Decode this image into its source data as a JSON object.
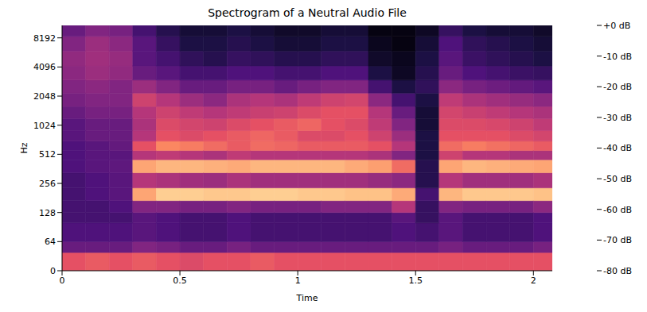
{
  "chart_data": {
    "type": "heatmap",
    "title": "Spectrogram of a Neutral Audio File",
    "x_label": "Time",
    "y_label": "Hz",
    "xlim": [
      0,
      2.08
    ],
    "xticks": [
      0,
      0.5,
      1,
      1.5,
      2
    ],
    "ylim": [
      0,
      11025
    ],
    "yticks": [
      0,
      64,
      128,
      256,
      512,
      1024,
      2048,
      4096,
      8192
    ],
    "log": "y",
    "x_edges": [
      0,
      0.1,
      0.2,
      0.3,
      0.4,
      0.5,
      0.6,
      0.7,
      0.8,
      0.9,
      1.0,
      1.1,
      1.2,
      1.3,
      1.4,
      1.5,
      1.6,
      1.7,
      1.8,
      1.9,
      2.0,
      2.08
    ],
    "y_edges": [
      0,
      40,
      64,
      100,
      128,
      170,
      230,
      330,
      450,
      560,
      700,
      900,
      1200,
      1600,
      2200,
      3000,
      4200,
      6000,
      8500,
      11025
    ],
    "cells": [
      [
        -30,
        -55,
        -60,
        -62,
        -62,
        -62,
        -62,
        -60,
        -60,
        -60,
        -58,
        -58,
        -55,
        -52,
        -50,
        -48,
        -47,
        -50,
        -55
      ],
      [
        -28,
        -55,
        -60,
        -62,
        -62,
        -60,
        -60,
        -58,
        -58,
        -58,
        -55,
        -55,
        -52,
        -50,
        -48,
        -45,
        -44,
        -45,
        -50
      ],
      [
        -30,
        -55,
        -60,
        -62,
        -60,
        -58,
        -58,
        -57,
        -58,
        -56,
        -55,
        -55,
        -52,
        -50,
        -50,
        -47,
        -46,
        -48,
        -52
      ],
      [
        -28,
        -50,
        -58,
        -58,
        -50,
        -15,
        -40,
        -15,
        -40,
        -30,
        -40,
        -42,
        -40,
        -35,
        -45,
        -55,
        -58,
        -58,
        -62
      ],
      [
        -30,
        -52,
        -60,
        -60,
        -50,
        -8,
        -42,
        -12,
        -38,
        -20,
        -30,
        -32,
        -35,
        -40,
        -50,
        -58,
        -62,
        -65,
        -68
      ],
      [
        -32,
        -55,
        -62,
        -62,
        -52,
        -8,
        -44,
        -12,
        -40,
        -22,
        -32,
        -34,
        -38,
        -45,
        -55,
        -62,
        -66,
        -70,
        -72
      ],
      [
        -30,
        -55,
        -62,
        -62,
        -52,
        -9,
        -45,
        -13,
        -42,
        -25,
        -30,
        -35,
        -40,
        -48,
        -55,
        -62,
        -68,
        -70,
        -72
      ],
      [
        -30,
        -52,
        -60,
        -60,
        -50,
        -9,
        -42,
        -14,
        -38,
        -28,
        -28,
        -32,
        -38,
        -42,
        -52,
        -60,
        -65,
        -68,
        -70
      ],
      [
        -28,
        -55,
        -62,
        -62,
        -52,
        -8,
        -44,
        -12,
        -40,
        -25,
        -26,
        -30,
        -36,
        -40,
        -52,
        -60,
        -66,
        -70,
        -72
      ],
      [
        -30,
        -55,
        -62,
        -62,
        -52,
        -8,
        -44,
        -12,
        -40,
        -26,
        -28,
        -28,
        -35,
        -42,
        -55,
        -62,
        -68,
        -72,
        -74
      ],
      [
        -30,
        -55,
        -62,
        -62,
        -52,
        -9,
        -44,
        -12,
        -40,
        -28,
        -32,
        -26,
        -32,
        -38,
        -52,
        -62,
        -68,
        -72,
        -74
      ],
      [
        -30,
        -55,
        -62,
        -62,
        -50,
        -9,
        -44,
        -12,
        -40,
        -28,
        -32,
        -30,
        -30,
        -35,
        -50,
        -60,
        -66,
        -70,
        -72
      ],
      [
        -30,
        -55,
        -62,
        -62,
        -50,
        -10,
        -44,
        -14,
        -40,
        -28,
        -30,
        -32,
        -30,
        -34,
        -50,
        -60,
        -66,
        -70,
        -72
      ],
      [
        -30,
        -55,
        -62,
        -62,
        -50,
        -10,
        -46,
        -16,
        -42,
        -30,
        -35,
        -38,
        -40,
        -48,
        -62,
        -70,
        -74,
        -76,
        -78
      ],
      [
        -30,
        -55,
        -60,
        -58,
        -40,
        -14,
        -48,
        -25,
        -50,
        -40,
        -45,
        -50,
        -55,
        -62,
        -70,
        -75,
        -76,
        -78,
        -78
      ],
      [
        -30,
        -55,
        -62,
        -65,
        -65,
        -62,
        -68,
        -68,
        -70,
        -70,
        -70,
        -72,
        -72,
        -70,
        -66,
        -68,
        -70,
        -72,
        -75
      ],
      [
        -30,
        -52,
        -58,
        -58,
        -50,
        -12,
        -40,
        -15,
        -35,
        -25,
        -30,
        -32,
        -34,
        -38,
        -48,
        -55,
        -58,
        -60,
        -65
      ],
      [
        -30,
        -55,
        -62,
        -62,
        -52,
        -9,
        -44,
        -12,
        -40,
        -22,
        -30,
        -32,
        -36,
        -42,
        -52,
        -60,
        -64,
        -66,
        -70
      ],
      [
        -30,
        -55,
        -62,
        -62,
        -52,
        -9,
        -44,
        -13,
        -40,
        -24,
        -30,
        -33,
        -38,
        -44,
        -54,
        -62,
        -66,
        -68,
        -72
      ],
      [
        -30,
        -55,
        -62,
        -62,
        -52,
        -9,
        -44,
        -14,
        -42,
        -26,
        -32,
        -35,
        -40,
        -46,
        -56,
        -64,
        -68,
        -70,
        -72
      ],
      [
        -30,
        -52,
        -60,
        -60,
        -48,
        -10,
        -42,
        -15,
        -42,
        -28,
        -34,
        -38,
        -42,
        -48,
        -58,
        -65,
        -70,
        -72,
        -74
      ]
    ],
    "colorbar": {
      "range": [
        -80,
        0
      ],
      "ticks": [
        {
          "value": 0,
          "label": "+0 dB"
        },
        {
          "value": -10,
          "label": "-10 dB"
        },
        {
          "value": -20,
          "label": "-20 dB"
        },
        {
          "value": -30,
          "label": "-30 dB"
        },
        {
          "value": -40,
          "label": "-40 dB"
        },
        {
          "value": -50,
          "label": "-50 dB"
        },
        {
          "value": -60,
          "label": "-60 dB"
        },
        {
          "value": -70,
          "label": "-70 dB"
        },
        {
          "value": -80,
          "label": "-80 dB"
        }
      ]
    }
  }
}
